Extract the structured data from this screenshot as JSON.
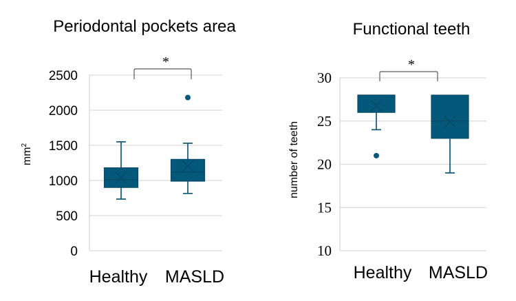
{
  "colors": {
    "box_fill": "#04587A",
    "box_stroke": "#0B4A66",
    "whisker": "#1F5F7D",
    "grid": "#D9D9D9",
    "bracket": "#595959",
    "text": "#000000"
  },
  "chart_data": [
    {
      "type": "box",
      "title": "Periodontal pockets area",
      "ylabel": "mm",
      "ylabel_superscript": "2",
      "xlabel": "",
      "ylim": [
        0,
        2500
      ],
      "yticks": [
        0,
        500,
        1000,
        1500,
        2000,
        2500
      ],
      "ytick_labels": [
        "0",
        "500",
        "1000",
        "1500",
        "2000",
        "2500"
      ],
      "grid": true,
      "categories": [
        "Healthy",
        "MASLD"
      ],
      "series": [
        {
          "name": "Healthy",
          "whisker_low": 735,
          "q1": 900,
          "median": 1010,
          "q3": 1180,
          "whisker_high": 1550,
          "mean": 1040,
          "outliers": []
        },
        {
          "name": "MASLD",
          "whisker_low": 815,
          "q1": 990,
          "median": 1120,
          "q3": 1300,
          "whisker_high": 1530,
          "mean": 1205,
          "outliers": [
            2180
          ]
        }
      ],
      "annotations": [
        {
          "type": "significance-bracket",
          "between": [
            "Healthy",
            "MASLD"
          ],
          "label": "*"
        }
      ]
    },
    {
      "type": "box",
      "title": "Functional teeth",
      "ylabel": "number of teeth",
      "xlabel": "",
      "ylim": [
        10,
        30
      ],
      "yticks": [
        10,
        15,
        20,
        25,
        30
      ],
      "ytick_labels": [
        "10",
        "15",
        "20",
        "25",
        "30"
      ],
      "grid": true,
      "categories": [
        "Healthy",
        "MASLD"
      ],
      "series": [
        {
          "name": "Healthy",
          "whisker_low": 24,
          "q1": 26,
          "median": 28,
          "q3": 28,
          "whisker_high": 28,
          "mean": 26.8,
          "outliers": [
            21
          ]
        },
        {
          "name": "MASLD",
          "whisker_low": 19,
          "q1": 23,
          "median": 25,
          "q3": 28,
          "whisker_high": 28,
          "mean": 24.9,
          "outliers": []
        }
      ],
      "annotations": [
        {
          "type": "significance-bracket",
          "between": [
            "Healthy",
            "MASLD"
          ],
          "label": "*"
        }
      ]
    }
  ]
}
